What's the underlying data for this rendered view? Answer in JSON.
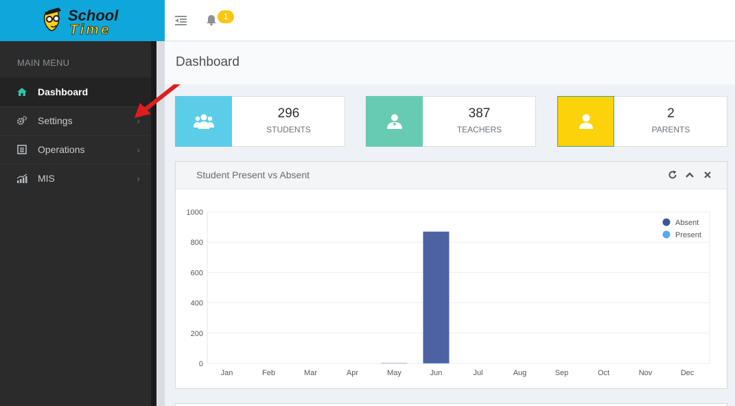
{
  "brand": {
    "line1": "School",
    "line2": "Time"
  },
  "sidebar": {
    "heading": "MAIN MENU",
    "items": [
      {
        "label": "Dashboard",
        "icon": "home-icon",
        "active": true
      },
      {
        "label": "Settings",
        "icon": "cogs-icon"
      },
      {
        "label": "Operations",
        "icon": "list-icon"
      },
      {
        "label": "MIS",
        "icon": "chart-icon"
      }
    ]
  },
  "topbar": {
    "notifications_count": "1"
  },
  "page": {
    "title": "Dashboard"
  },
  "stats": [
    {
      "value": "296",
      "label": "STUDENTS",
      "color": "#5bcde9"
    },
    {
      "value": "387",
      "label": "TEACHERS",
      "color": "#66cbb2"
    },
    {
      "value": "2",
      "label": "PARENTS",
      "color": "#fcd20a"
    }
  ],
  "panel": {
    "title": "Student Present vs Absent"
  },
  "chart_data": {
    "type": "bar",
    "categories": [
      "Jan",
      "Feb",
      "Mar",
      "Apr",
      "May",
      "Jun",
      "Jul",
      "Aug",
      "Sep",
      "Oct",
      "Nov",
      "Dec"
    ],
    "series": [
      {
        "name": "Absent",
        "color": "#3d559b",
        "values": [
          0,
          0,
          0,
          0,
          2,
          870,
          0,
          0,
          0,
          0,
          0,
          0
        ]
      },
      {
        "name": "Present",
        "color": "#55acee",
        "values": [
          0,
          0,
          0,
          0,
          0,
          3,
          0,
          0,
          0,
          0,
          0,
          0
        ]
      }
    ],
    "ylim": [
      0,
      1000
    ],
    "yticks": [
      0,
      200,
      400,
      600,
      800,
      1000
    ],
    "grid": true,
    "legend": "top-right"
  }
}
